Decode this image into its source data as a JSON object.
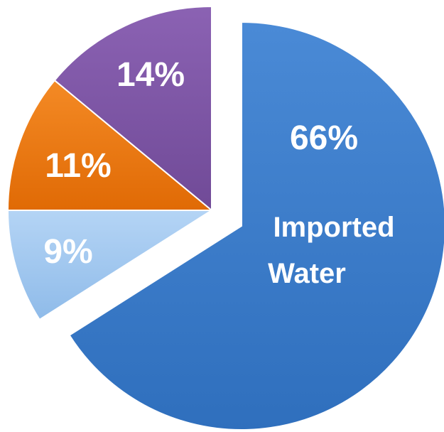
{
  "chart_data": {
    "type": "pie",
    "title": "",
    "legend": "none",
    "slices": [
      {
        "label": "Imported Water",
        "value": 66,
        "display": "66%",
        "color": "#3d7ecb"
      },
      {
        "label": "",
        "value": 9,
        "display": "9%",
        "color": "#9ec6f0"
      },
      {
        "label": "",
        "value": 11,
        "display": "11%",
        "color": "#f0780f"
      },
      {
        "label": "",
        "value": 14,
        "display": "14%",
        "color": "#7d55a3"
      }
    ]
  }
}
